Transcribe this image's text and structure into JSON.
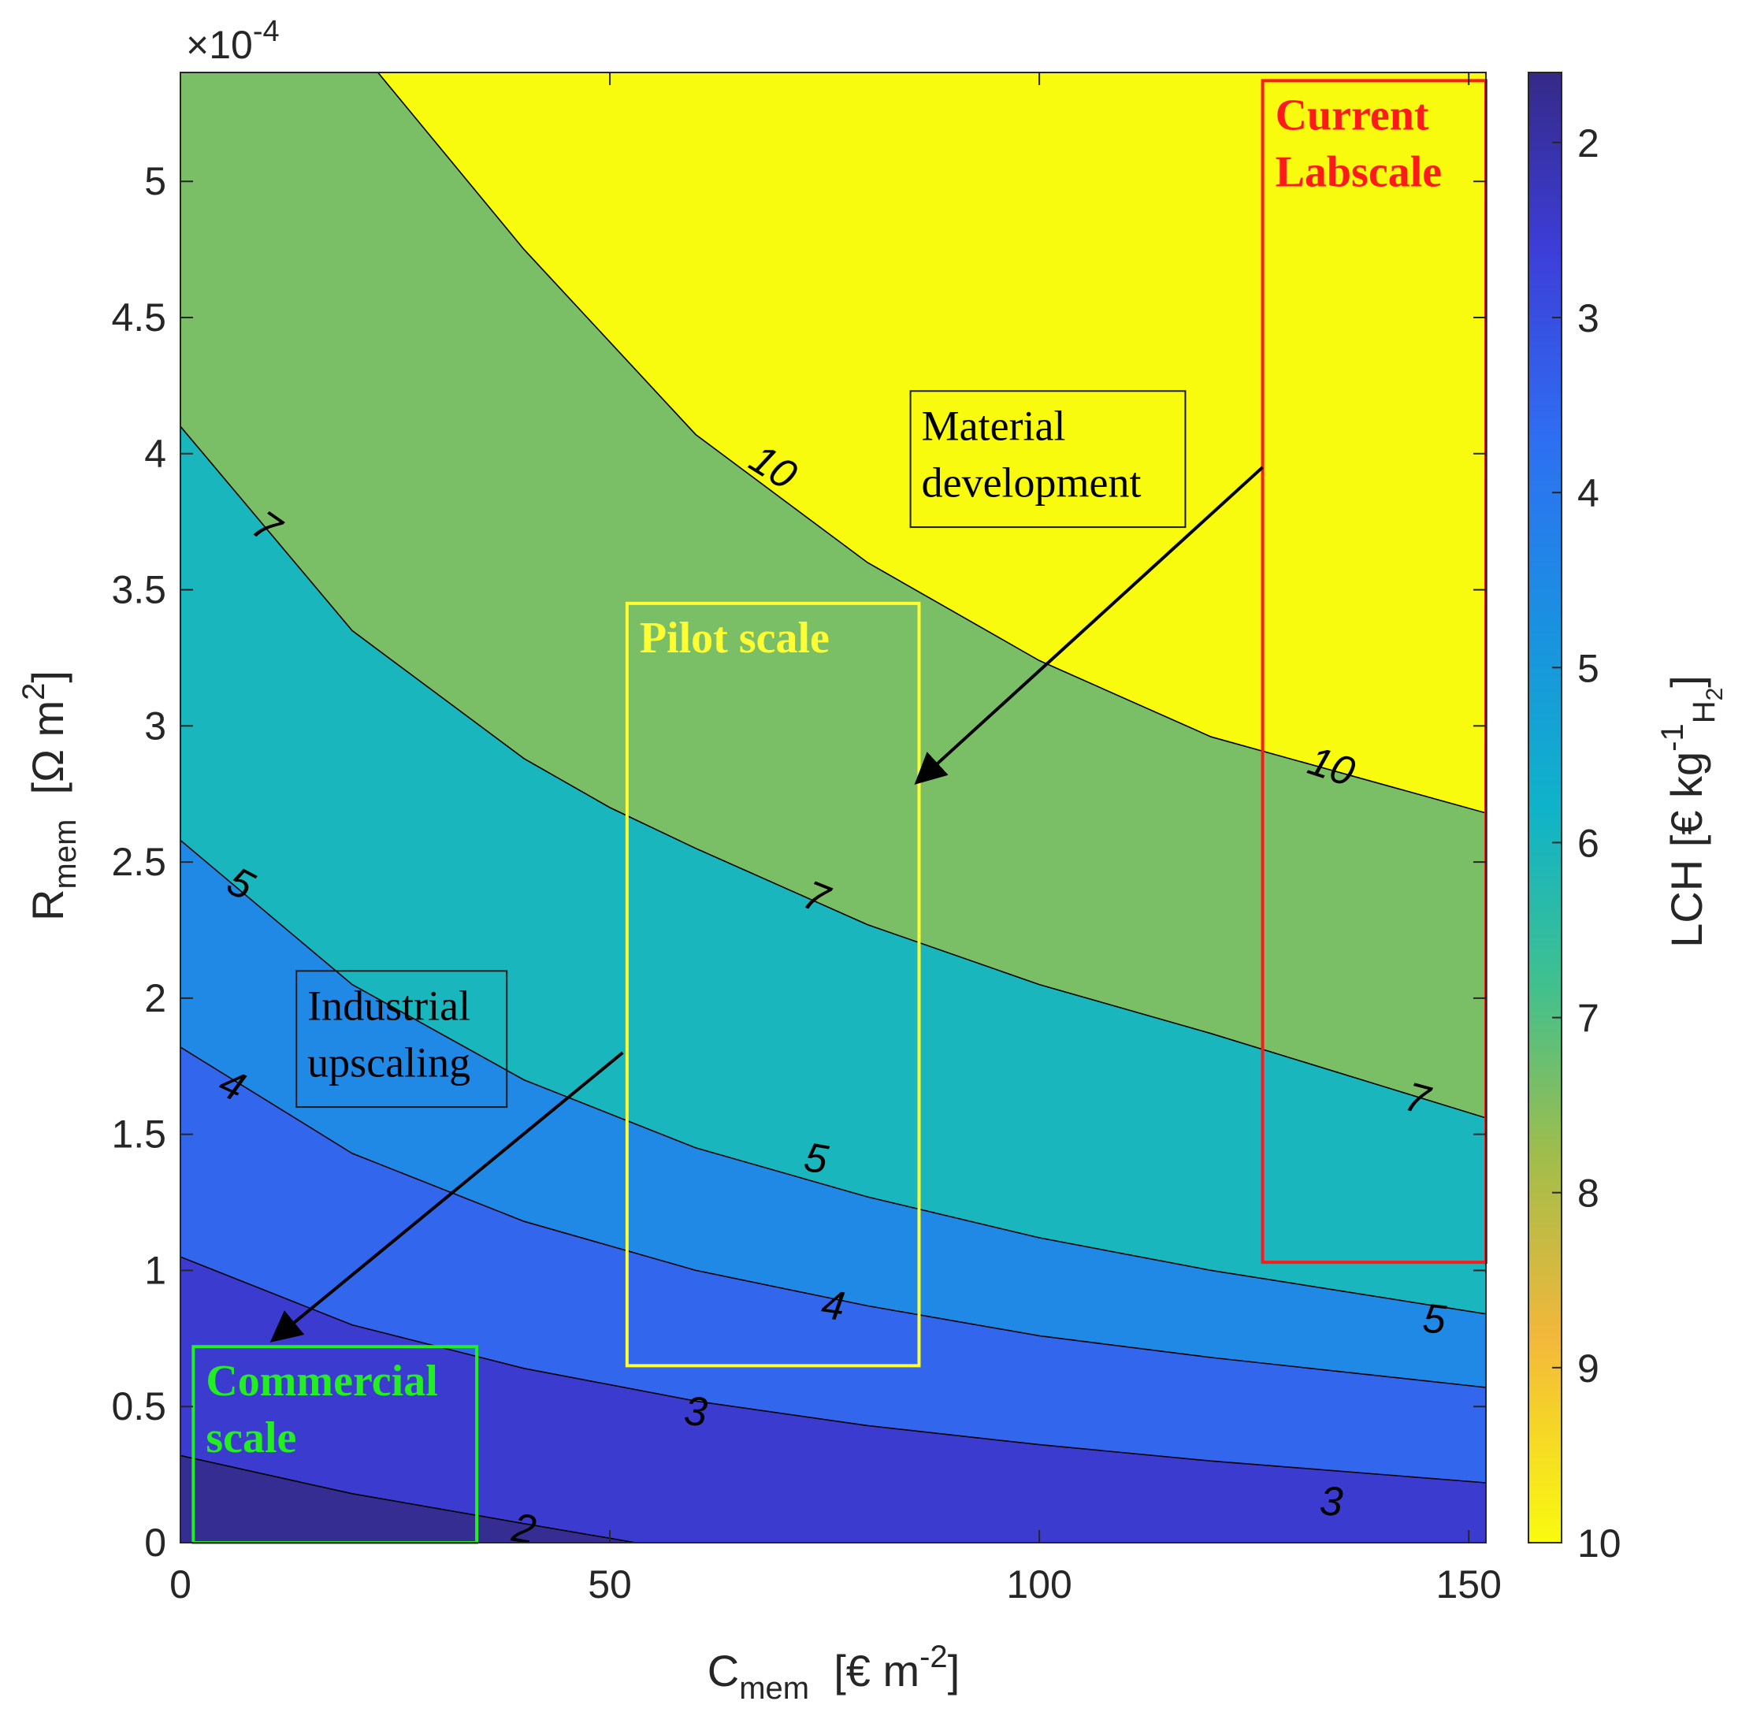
{
  "chart_data": {
    "type": "contour",
    "title": "",
    "xlabel": {
      "main": "C",
      "sub": "mem",
      "unit_pre": "[€ m",
      "unit_sup": "-2",
      "unit_post": "]"
    },
    "ylabel": {
      "main": "R",
      "sub": "mem",
      "unit_pre": "[Ω m",
      "unit_sup": "2",
      "unit_post": "]"
    },
    "xlim": [
      0,
      152
    ],
    "ylim": [
      0,
      5.4
    ],
    "y_multiplier_label": {
      "prefix": "×10",
      "exp": "-4"
    },
    "x_ticks": [
      "0",
      "50",
      "100",
      "150"
    ],
    "x_tick_values": [
      0,
      50,
      100,
      150
    ],
    "y_ticks": [
      "0",
      "0.5",
      "1",
      "1.5",
      "2",
      "2.5",
      "3",
      "3.5",
      "4",
      "4.5",
      "5"
    ],
    "y_tick_values": [
      0,
      0.5,
      1,
      1.5,
      2,
      2.5,
      3,
      3.5,
      4,
      4.5,
      5
    ],
    "colorbar": {
      "label": {
        "main": "LCH [€ kg",
        "sup": "-1",
        "sub": "H",
        "subsub": "2",
        "post": "]"
      },
      "ticks": [
        "2",
        "3",
        "4",
        "5",
        "6",
        "7",
        "8",
        "9",
        "10"
      ],
      "tick_values": [
        2,
        3,
        4,
        5,
        6,
        7,
        8,
        9,
        10
      ],
      "range": [
        1.6,
        10
      ],
      "direction": "top-low",
      "colormap": "parula"
    },
    "contour_levels": [
      {
        "level": 2,
        "label": "2",
        "points": [
          [
            0,
            0.32
          ],
          [
            20,
            0.18
          ],
          [
            40,
            0.07
          ],
          [
            53,
            0.0
          ]
        ]
      },
      {
        "level": 3,
        "label": "3",
        "points": [
          [
            0,
            1.05
          ],
          [
            20,
            0.8
          ],
          [
            40,
            0.64
          ],
          [
            60,
            0.52
          ],
          [
            80,
            0.43
          ],
          [
            100,
            0.36
          ],
          [
            120,
            0.3
          ],
          [
            152,
            0.22
          ]
        ]
      },
      {
        "level": 4,
        "label": "4",
        "points": [
          [
            0,
            1.82
          ],
          [
            20,
            1.43
          ],
          [
            40,
            1.18
          ],
          [
            60,
            1.0
          ],
          [
            80,
            0.87
          ],
          [
            100,
            0.76
          ],
          [
            120,
            0.68
          ],
          [
            152,
            0.57
          ]
        ]
      },
      {
        "level": 5,
        "label": "5",
        "points": [
          [
            0,
            2.58
          ],
          [
            20,
            2.05
          ],
          [
            40,
            1.7
          ],
          [
            60,
            1.45
          ],
          [
            80,
            1.27
          ],
          [
            100,
            1.12
          ],
          [
            120,
            1.0
          ],
          [
            152,
            0.84
          ]
        ]
      },
      {
        "level": 7,
        "label": "7",
        "points": [
          [
            0,
            4.1
          ],
          [
            20,
            3.35
          ],
          [
            40,
            2.88
          ],
          [
            50,
            2.7
          ],
          [
            60,
            2.55
          ],
          [
            80,
            2.27
          ],
          [
            100,
            2.05
          ],
          [
            120,
            1.87
          ],
          [
            152,
            1.56
          ]
        ]
      },
      {
        "level": 10,
        "label": "10",
        "points": [
          [
            23,
            5.4
          ],
          [
            40,
            4.75
          ],
          [
            60,
            4.07
          ],
          [
            80,
            3.6
          ],
          [
            100,
            3.24
          ],
          [
            120,
            2.96
          ],
          [
            152,
            2.68
          ]
        ]
      }
    ],
    "contour_label_positions": [
      {
        "text": "2",
        "x": 40,
        "y": 0.05,
        "rot": 10
      },
      {
        "text": "3",
        "x": 60,
        "y": 0.48,
        "rot": 5
      },
      {
        "text": "3",
        "x": 134,
        "y": 0.15,
        "rot": 4
      },
      {
        "text": "4",
        "x": 6,
        "y": 1.68,
        "rot": 25
      },
      {
        "text": "4",
        "x": 76,
        "y": 0.87,
        "rot": 8
      },
      {
        "text": "5",
        "x": 7,
        "y": 2.42,
        "rot": 28
      },
      {
        "text": "5",
        "x": 74,
        "y": 1.41,
        "rot": 10
      },
      {
        "text": "5",
        "x": 146,
        "y": 0.82,
        "rot": 6
      },
      {
        "text": "7",
        "x": 10,
        "y": 3.73,
        "rot": 35
      },
      {
        "text": "7",
        "x": 74,
        "y": 2.37,
        "rot": 22
      },
      {
        "text": "7",
        "x": 144,
        "y": 1.63,
        "rot": 15
      },
      {
        "text": "10",
        "x": 69,
        "y": 3.95,
        "rot": 32
      },
      {
        "text": "10",
        "x": 134,
        "y": 2.85,
        "rot": 18
      }
    ],
    "regions": [
      {
        "name": "Current Labscale",
        "lines": [
          "Current",
          "Labscale"
        ],
        "x": [
          126,
          152
        ],
        "y": [
          1.03,
          5.37
        ],
        "color": "#ff1a1a"
      },
      {
        "name": "Pilot scale",
        "lines": [
          "Pilot scale"
        ],
        "x": [
          52,
          86
        ],
        "y": [
          0.65,
          3.45
        ],
        "color": "#ffff33"
      },
      {
        "name": "Commercial scale",
        "lines": [
          "Commercial",
          "scale"
        ],
        "x": [
          1.5,
          34.5
        ],
        "y": [
          0.0,
          0.72
        ],
        "color": "#22ee22"
      }
    ],
    "annotations": [
      {
        "lines": [
          "Material",
          "development"
        ],
        "box_x": [
          85,
          117
        ],
        "box_y": [
          3.73,
          4.23
        ],
        "arrow_from": [
          126,
          3.95
        ],
        "arrow_to": [
          86,
          2.8
        ]
      },
      {
        "lines": [
          "Industrial",
          "upscaling"
        ],
        "box_x": [
          13.5,
          38
        ],
        "box_y": [
          1.6,
          2.1
        ],
        "arrow_from": [
          51.5,
          1.8
        ],
        "arrow_to": [
          11,
          0.75
        ]
      }
    ]
  }
}
